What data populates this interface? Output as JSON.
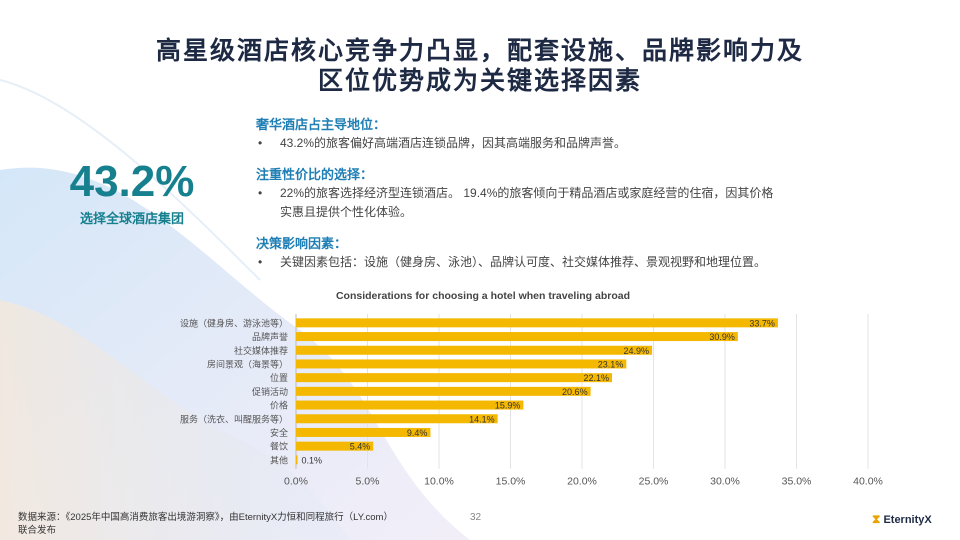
{
  "title_line1": "高星级酒店核心竞争力凸显，配套设施、品牌影响力及",
  "title_line2": "区位优势成为关键选择因素",
  "highlight": {
    "value": "43.2%",
    "label": "选择全球酒店集团"
  },
  "points": [
    {
      "heading": "奢华酒店占主导地位：",
      "bullet": "•",
      "lines": [
        "43.2%的旅客偏好高端酒店连锁品牌，因其高端服务和品牌声誉。"
      ]
    },
    {
      "heading": "注重性价比的选择：",
      "bullet": "•",
      "lines": [
        "22%的旅客选择经济型连锁酒店。 19.4%的旅客倾向于精品酒店或家庭经营的住宿，因其价格",
        "实惠且提供个性化体验。"
      ]
    },
    {
      "heading": "决策影响因素：",
      "bullet": "•",
      "lines": [
        "关键因素包括：设施（健身房、泳池）、品牌认可度、社交媒体推荐、景观视野和地理位置。"
      ]
    }
  ],
  "chart_data": {
    "type": "bar",
    "orientation": "horizontal",
    "title": "Considerations for choosing a hotel when traveling abroad",
    "categories": [
      "设施（健身房、游泳池等）",
      "品牌声誉",
      "社交媒体推荐",
      "房间景观（海景等）",
      "位置",
      "促销活动",
      "价格",
      "服务（洗衣、叫醒服务等）",
      "安全",
      "餐饮",
      "其他"
    ],
    "values": [
      33.7,
      30.9,
      24.9,
      23.1,
      22.1,
      20.6,
      15.9,
      14.1,
      9.4,
      5.4,
      0.1
    ],
    "value_labels": [
      "33.7%",
      "30.9%",
      "24.9%",
      "23.1%",
      "22.1%",
      "20.6%",
      "15.9%",
      "14.1%",
      "9.4%",
      "5.4%",
      "0.1%"
    ],
    "xlim": [
      0,
      40
    ],
    "xticks": [
      "0.0%",
      "5.0%",
      "10.0%",
      "15.0%",
      "20.0%",
      "25.0%",
      "30.0%",
      "35.0%",
      "40.0%"
    ],
    "grid": true,
    "bar_color": "#f5b800"
  },
  "footer": {
    "source_line1": "数据来源：《2025年中国高消费旅客出境游洞察》，由EternityX力恒和同程旅行（LY.com）",
    "source_line2": "联合发布",
    "page": "32",
    "logo_text": "EternityX",
    "logo_icon": "hourglass-icon"
  }
}
